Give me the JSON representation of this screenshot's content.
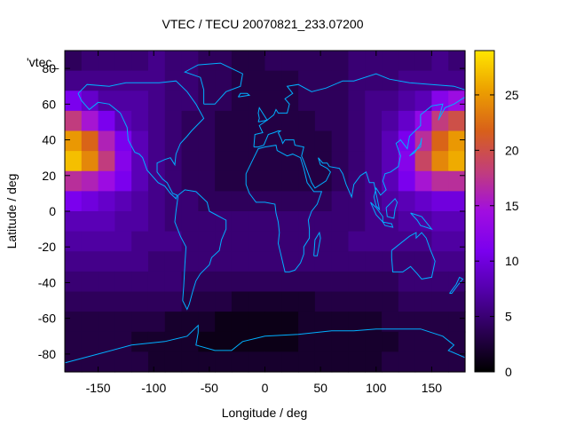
{
  "chart_data": {
    "type": "heatmap",
    "title": "VTEC / TECU 20070821_233.07200",
    "xlabel": "Longitude / deg",
    "ylabel": "Latitude / deg",
    "legend": "'vtec_",
    "xlim": [
      -180,
      180
    ],
    "ylim": [
      -90,
      90
    ],
    "xticks": [
      -150,
      -100,
      -50,
      0,
      50,
      100,
      150
    ],
    "yticks": [
      -80,
      -60,
      -40,
      -20,
      0,
      20,
      40,
      60,
      80
    ],
    "colorbar": {
      "range": [
        0,
        29
      ],
      "ticks": [
        0,
        5,
        10,
        15,
        20,
        25
      ]
    },
    "colors": {
      "palette": [
        "#000000",
        "#2a0052",
        "#5200a8",
        "#7a00ee",
        "#a10ee0",
        "#c23e7a",
        "#d8601a",
        "#ec9f00",
        "#ffe600"
      ],
      "coastline": "#00b0ff"
    },
    "grid": false,
    "values": [
      [
        4,
        5,
        5,
        5,
        5,
        6,
        5,
        5,
        4,
        4,
        3,
        3,
        4,
        4,
        4,
        4,
        4,
        5,
        5,
        5,
        5,
        5,
        6,
        5
      ],
      [
        6,
        6,
        6,
        6,
        6,
        6,
        5,
        5,
        4,
        4,
        3,
        3,
        3,
        3,
        4,
        4,
        4,
        5,
        5,
        5,
        6,
        6,
        6,
        6
      ],
      [
        11,
        9,
        7,
        7,
        7,
        6,
        5,
        5,
        4,
        4,
        3,
        3,
        3,
        3,
        4,
        4,
        4,
        5,
        6,
        6,
        7,
        8,
        12,
        14
      ],
      [
        18,
        15,
        11,
        8,
        7,
        6,
        5,
        4,
        4,
        3,
        3,
        3,
        3,
        3,
        3,
        4,
        4,
        5,
        6,
        7,
        9,
        13,
        18,
        20
      ],
      [
        25,
        22,
        16,
        11,
        8,
        6,
        5,
        4,
        4,
        3,
        3,
        3,
        3,
        3,
        3,
        3,
        4,
        5,
        6,
        8,
        11,
        17,
        22,
        25
      ],
      [
        27,
        24,
        18,
        12,
        8,
        6,
        5,
        4,
        4,
        3,
        3,
        3,
        3,
        3,
        3,
        3,
        4,
        5,
        6,
        8,
        12,
        19,
        24,
        26
      ],
      [
        17,
        16,
        14,
        11,
        8,
        6,
        5,
        4,
        4,
        3,
        3,
        3,
        3,
        3,
        3,
        3,
        4,
        5,
        6,
        8,
        11,
        15,
        17,
        17
      ],
      [
        11,
        10,
        9,
        8,
        7,
        6,
        5,
        5,
        4,
        4,
        4,
        4,
        4,
        4,
        4,
        4,
        5,
        5,
        6,
        7,
        8,
        9,
        10,
        10
      ],
      [
        8,
        8,
        8,
        7,
        7,
        6,
        5,
        5,
        5,
        5,
        5,
        5,
        5,
        5,
        5,
        5,
        5,
        5,
        6,
        6,
        7,
        7,
        8,
        8
      ],
      [
        7,
        7,
        7,
        7,
        6,
        6,
        6,
        5,
        5,
        5,
        5,
        5,
        5,
        5,
        5,
        5,
        5,
        6,
        6,
        6,
        6,
        6,
        7,
        7
      ],
      [
        6,
        6,
        6,
        6,
        6,
        5,
        5,
        5,
        5,
        5,
        5,
        5,
        5,
        5,
        5,
        5,
        5,
        5,
        5,
        5,
        5,
        5,
        6,
        6
      ],
      [
        5,
        5,
        5,
        5,
        5,
        5,
        5,
        4,
        4,
        4,
        4,
        4,
        4,
        4,
        4,
        4,
        4,
        4,
        4,
        4,
        5,
        5,
        5,
        5
      ],
      [
        4,
        4,
        4,
        4,
        4,
        4,
        4,
        3,
        3,
        3,
        2,
        2,
        2,
        2,
        2,
        3,
        3,
        3,
        3,
        3,
        4,
        4,
        4,
        4
      ],
      [
        3,
        3,
        3,
        3,
        3,
        3,
        2,
        2,
        2,
        1,
        1,
        1,
        1,
        1,
        2,
        2,
        2,
        2,
        2,
        3,
        3,
        3,
        3,
        3
      ],
      [
        3,
        3,
        3,
        3,
        2,
        2,
        2,
        2,
        1,
        1,
        1,
        1,
        1,
        1,
        2,
        2,
        2,
        2,
        2,
        2,
        3,
        3,
        3,
        3
      ],
      [
        3,
        3,
        3,
        3,
        3,
        2,
        2,
        2,
        2,
        2,
        2,
        2,
        2,
        2,
        2,
        2,
        2,
        2,
        2,
        3,
        3,
        3,
        3,
        3
      ]
    ]
  }
}
